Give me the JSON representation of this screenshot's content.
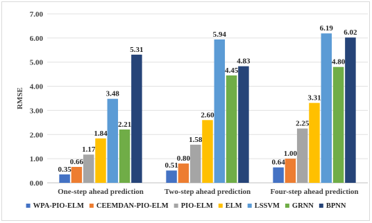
{
  "chart_data": {
    "type": "bar",
    "categories": [
      "One-step ahead prediction",
      "Two-step ahead prediction",
      "Four-step ahead prediction"
    ],
    "series": [
      {
        "name": "WPA-PIO-ELM",
        "values": [
          0.35,
          0.51,
          0.64
        ],
        "color": "#4472c4"
      },
      {
        "name": "CEEMDAN-PIO-ELM",
        "values": [
          0.66,
          0.8,
          1.0
        ],
        "color": "#ed7d31"
      },
      {
        "name": "PIO-ELM",
        "values": [
          1.17,
          1.58,
          2.25
        ],
        "color": "#a5a5a5"
      },
      {
        "name": "ELM",
        "values": [
          1.84,
          2.6,
          3.31
        ],
        "color": "#ffc000"
      },
      {
        "name": "LSSVM",
        "values": [
          3.48,
          5.94,
          6.19
        ],
        "color": "#5b9bd5"
      },
      {
        "name": "GRNN",
        "values": [
          2.21,
          4.45,
          4.8
        ],
        "color": "#70ad47"
      },
      {
        "name": "BPNN",
        "values": [
          5.31,
          4.83,
          6.02
        ],
        "color": "#264478"
      }
    ],
    "ylabel": "RMSE",
    "ylim": [
      0,
      7
    ],
    "yticks": [
      "0.00",
      "1.00",
      "2.00",
      "3.00",
      "4.00",
      "5.00",
      "6.00",
      "7.00"
    ],
    "grid": true,
    "legend": "bottom"
  }
}
